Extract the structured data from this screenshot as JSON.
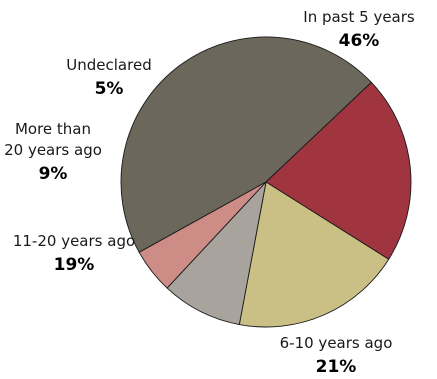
{
  "chart_data": {
    "type": "pie",
    "title": "",
    "slices": [
      {
        "label_lines": [
          "In past 5 years"
        ],
        "value": 46,
        "value_label": "46%",
        "color": "#6b685b"
      },
      {
        "label_lines": [
          "6-10 years ago"
        ],
        "value": 21,
        "value_label": "21%",
        "color": "#a03540"
      },
      {
        "label_lines": [
          "11-20 years ago"
        ],
        "value": 19,
        "value_label": "19%",
        "color": "#cabf85"
      },
      {
        "label_lines": [
          "More than",
          "20 years ago"
        ],
        "value": 9,
        "value_label": "9%",
        "color": "#a8a49d"
      },
      {
        "label_lines": [
          "Undeclared"
        ],
        "value": 5,
        "value_label": "5%",
        "color": "#cd8c86"
      }
    ]
  }
}
